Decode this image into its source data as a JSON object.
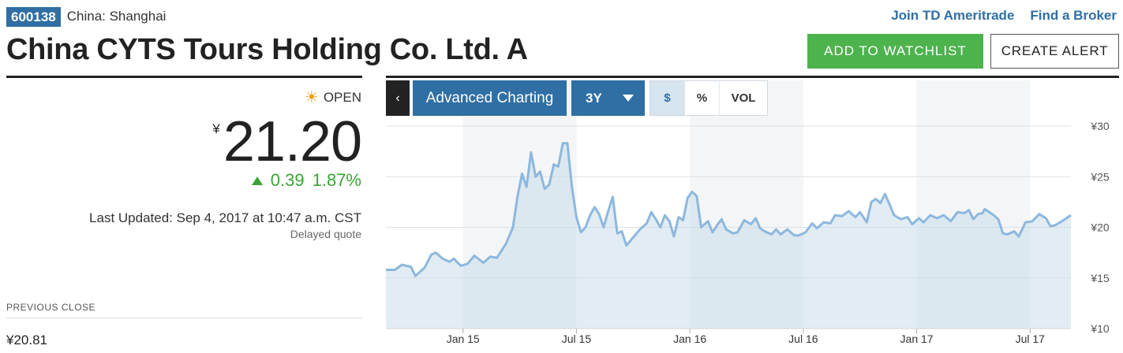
{
  "header": {
    "ticker": "600138",
    "exchange": "China: Shanghai",
    "company": "China CYTS Tours Holding Co. Ltd. A",
    "links": [
      "Join TD Ameritrade",
      "Find a Broker"
    ],
    "watchlist_label": "ADD TO WATCHLIST",
    "alert_label": "CREATE ALERT"
  },
  "quote": {
    "status": "OPEN",
    "currency": "¥",
    "price": "21.20",
    "change": "0.39",
    "change_pct": "1.87%",
    "last_updated": "Last Updated: Sep 4, 2017 at 10:47 a.m. CST",
    "delayed": "Delayed quote",
    "previous_close_label": "PREVIOUS CLOSE",
    "previous_close": "¥20.81"
  },
  "toolbar": {
    "back_glyph": "‹",
    "advanced": "Advanced Charting",
    "range": "3Y",
    "modes": [
      "$",
      "%",
      "VOL"
    ],
    "active_mode": "$"
  },
  "colors": {
    "brand_blue": "#2f6fa3",
    "positive": "#3aa335",
    "watch_green": "#4db34d",
    "line": "#8db8de"
  },
  "chart_data": {
    "type": "area",
    "ylim": [
      10,
      30
    ],
    "y_ticks": [
      10,
      15,
      20,
      25,
      30
    ],
    "y_tick_labels": [
      "¥10",
      "¥15",
      "¥20",
      "¥25",
      "¥30"
    ],
    "x_ticks": [
      {
        "label": "Jan 15",
        "t": 2015.0
      },
      {
        "label": "Jul 15",
        "t": 2015.5
      },
      {
        "label": "Jan 16",
        "t": 2016.0
      },
      {
        "label": "Jul 16",
        "t": 2016.5
      },
      {
        "label": "Jan 17",
        "t": 2017.0
      },
      {
        "label": "Jul 17",
        "t": 2017.5
      }
    ],
    "xlim": [
      2014.66,
      2017.68
    ],
    "series": [
      {
        "points": [
          [
            2014.66,
            15.8
          ],
          [
            2014.7,
            15.8
          ],
          [
            2014.73,
            16.3
          ],
          [
            2014.77,
            16.1
          ],
          [
            2014.79,
            15.2
          ],
          [
            2014.83,
            16.0
          ],
          [
            2014.86,
            17.3
          ],
          [
            2014.88,
            17.5
          ],
          [
            2014.91,
            16.9
          ],
          [
            2014.94,
            16.6
          ],
          [
            2014.96,
            16.9
          ],
          [
            2014.99,
            16.2
          ],
          [
            2015.02,
            16.4
          ],
          [
            2015.05,
            17.2
          ],
          [
            2015.09,
            16.5
          ],
          [
            2015.12,
            17.1
          ],
          [
            2015.15,
            17.0
          ],
          [
            2015.19,
            18.4
          ],
          [
            2015.22,
            20.0
          ],
          [
            2015.24,
            23.0
          ],
          [
            2015.26,
            25.3
          ],
          [
            2015.28,
            24.0
          ],
          [
            2015.3,
            27.4
          ],
          [
            2015.32,
            25.0
          ],
          [
            2015.34,
            25.5
          ],
          [
            2015.36,
            23.8
          ],
          [
            2015.38,
            24.2
          ],
          [
            2015.4,
            26.2
          ],
          [
            2015.42,
            26.0
          ],
          [
            2015.44,
            28.3
          ],
          [
            2015.46,
            28.3
          ],
          [
            2015.48,
            24.0
          ],
          [
            2015.5,
            21.0
          ],
          [
            2015.52,
            19.5
          ],
          [
            2015.54,
            20.0
          ],
          [
            2015.56,
            21.2
          ],
          [
            2015.58,
            22.0
          ],
          [
            2015.6,
            21.3
          ],
          [
            2015.62,
            20.0
          ],
          [
            2015.64,
            21.6
          ],
          [
            2015.66,
            23.0
          ],
          [
            2015.68,
            19.4
          ],
          [
            2015.7,
            19.6
          ],
          [
            2015.72,
            18.2
          ],
          [
            2015.75,
            19.0
          ],
          [
            2015.78,
            19.8
          ],
          [
            2015.81,
            20.4
          ],
          [
            2015.83,
            21.5
          ],
          [
            2015.85,
            20.8
          ],
          [
            2015.87,
            20.0
          ],
          [
            2015.89,
            21.2
          ],
          [
            2015.91,
            20.6
          ],
          [
            2015.93,
            19.1
          ],
          [
            2015.95,
            21.0
          ],
          [
            2015.97,
            20.7
          ],
          [
            2015.99,
            22.9
          ],
          [
            2016.01,
            23.5
          ],
          [
            2016.03,
            23.1
          ],
          [
            2016.05,
            20.0
          ],
          [
            2016.08,
            20.6
          ],
          [
            2016.1,
            19.5
          ],
          [
            2016.12,
            20.2
          ],
          [
            2016.14,
            20.8
          ],
          [
            2016.16,
            19.8
          ],
          [
            2016.19,
            19.4
          ],
          [
            2016.21,
            19.5
          ],
          [
            2016.24,
            20.7
          ],
          [
            2016.27,
            20.3
          ],
          [
            2016.29,
            20.9
          ],
          [
            2016.31,
            19.9
          ],
          [
            2016.33,
            19.6
          ],
          [
            2016.36,
            19.3
          ],
          [
            2016.38,
            19.8
          ],
          [
            2016.4,
            19.3
          ],
          [
            2016.43,
            19.8
          ],
          [
            2016.46,
            19.2
          ],
          [
            2016.48,
            19.2
          ],
          [
            2016.51,
            19.5
          ],
          [
            2016.54,
            20.4
          ],
          [
            2016.56,
            19.9
          ],
          [
            2016.59,
            20.5
          ],
          [
            2016.62,
            20.4
          ],
          [
            2016.64,
            21.2
          ],
          [
            2016.67,
            21.1
          ],
          [
            2016.7,
            21.6
          ],
          [
            2016.73,
            21.0
          ],
          [
            2016.75,
            21.5
          ],
          [
            2016.78,
            20.5
          ],
          [
            2016.8,
            22.5
          ],
          [
            2016.82,
            22.8
          ],
          [
            2016.84,
            22.4
          ],
          [
            2016.86,
            23.3
          ],
          [
            2016.88,
            22.3
          ],
          [
            2016.9,
            21.2
          ],
          [
            2016.93,
            20.8
          ],
          [
            2016.96,
            21.0
          ],
          [
            2016.98,
            20.3
          ],
          [
            2017.01,
            20.9
          ],
          [
            2017.03,
            20.5
          ],
          [
            2017.06,
            21.2
          ],
          [
            2017.09,
            20.9
          ],
          [
            2017.12,
            21.2
          ],
          [
            2017.15,
            20.6
          ],
          [
            2017.18,
            21.5
          ],
          [
            2017.21,
            21.4
          ],
          [
            2017.23,
            21.7
          ],
          [
            2017.25,
            20.8
          ],
          [
            2017.27,
            21.3
          ],
          [
            2017.29,
            21.4
          ],
          [
            2017.3,
            21.8
          ],
          [
            2017.32,
            21.5
          ],
          [
            2017.34,
            21.2
          ],
          [
            2017.36,
            20.8
          ],
          [
            2017.38,
            19.4
          ],
          [
            2017.4,
            19.3
          ],
          [
            2017.43,
            19.6
          ],
          [
            2017.45,
            19.1
          ],
          [
            2017.48,
            20.5
          ],
          [
            2017.51,
            20.6
          ],
          [
            2017.54,
            21.3
          ],
          [
            2017.57,
            20.9
          ],
          [
            2017.59,
            20.1
          ],
          [
            2017.61,
            20.2
          ],
          [
            2017.64,
            20.6
          ],
          [
            2017.66,
            20.9
          ],
          [
            2017.68,
            21.2
          ]
        ]
      }
    ]
  }
}
